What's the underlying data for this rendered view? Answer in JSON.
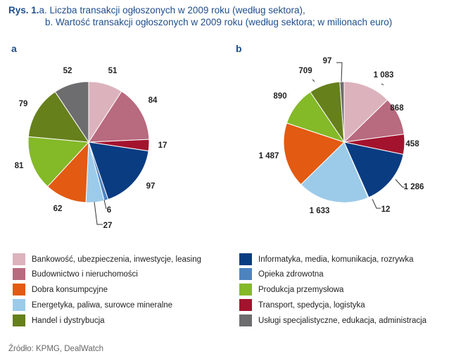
{
  "title": {
    "line1_prefix": "Rys. 1.",
    "line1_text": "a. Liczba transakcji ogłoszonych w 2009 roku (według sektora),",
    "line2_text": "b. Wartość transakcji ogłoszonych w 2009 roku (według sektora; w milionach euro)"
  },
  "panels": {
    "a": "a",
    "b": "b"
  },
  "sectors": [
    {
      "label": "Bankowość, ubezpieczenia, inwestycje, leasing",
      "color": "#dcb3bd"
    },
    {
      "label": "Budownictwo i nieruchomości",
      "color": "#b86a7f"
    },
    {
      "label": "Dobra konsumpcyjne",
      "color": "#e35a12"
    },
    {
      "label": "Energetyka, paliwa, surowce mineralne",
      "color": "#9ccbea"
    },
    {
      "label": "Handel i dystrybucja",
      "color": "#66801c"
    },
    {
      "label": "Informatyka, media, komunikacja, rozrywka",
      "color": "#0a3c82"
    },
    {
      "label": "Opieka zdrowotna",
      "color": "#4d84c0"
    },
    {
      "label": "Produkcja przemysłowa",
      "color": "#84b928"
    },
    {
      "label": "Transport, spedycja, logistyka",
      "color": "#a3132e"
    },
    {
      "label": "Usługi specjalistyczne, edukacja, administracja",
      "color": "#6d6d6f"
    }
  ],
  "chart_data": [
    {
      "type": "pie",
      "title": "a",
      "slices": [
        {
          "sector": "Bankowość, ubezpieczenia, inwestycje, leasing",
          "value": 51,
          "label": "51"
        },
        {
          "sector": "Budownictwo i nieruchomości",
          "value": 84,
          "label": "84"
        },
        {
          "sector": "Transport, spedycja, logistyka",
          "value": 17,
          "label": "17"
        },
        {
          "sector": "Informatyka, media, komunikacja, rozrywka",
          "value": 97,
          "label": "97"
        },
        {
          "sector": "Opieka zdrowotna",
          "value": 6,
          "label": "6"
        },
        {
          "sector": "Energetyka, paliwa, surowce mineralne",
          "value": 27,
          "label": "27"
        },
        {
          "sector": "Dobra konsumpcyjne",
          "value": 62,
          "label": "62"
        },
        {
          "sector": "Produkcja przemysłowa",
          "value": 81,
          "label": "81"
        },
        {
          "sector": "Handel i dystrybucja",
          "value": 79,
          "label": "79"
        },
        {
          "sector": "Usługi specjalistyczne, edukacja, administracja",
          "value": 52,
          "label": "52"
        }
      ]
    },
    {
      "type": "pie",
      "title": "b",
      "slices": [
        {
          "sector": "Bankowość, ubezpieczenia, inwestycje, leasing",
          "value": 1083,
          "label": "1 083"
        },
        {
          "sector": "Budownictwo i nieruchomości",
          "value": 868,
          "label": "868"
        },
        {
          "sector": "Transport, spedycja, logistyka",
          "value": 458,
          "label": "458"
        },
        {
          "sector": "Informatyka, media, komunikacja, rozrywka",
          "value": 1286,
          "label": "1 286"
        },
        {
          "sector": "Opieka zdrowotna",
          "value": 12,
          "label": "12"
        },
        {
          "sector": "Energetyka, paliwa, surowce mineralne",
          "value": 1633,
          "label": "1 633"
        },
        {
          "sector": "Dobra konsumpcyjne",
          "value": 1487,
          "label": "1 487"
        },
        {
          "sector": "Produkcja przemysłowa",
          "value": 890,
          "label": "890"
        },
        {
          "sector": "Handel i dystrybucja",
          "value": 709,
          "label": "709"
        },
        {
          "sector": "Usługi specjalistyczne, edukacja, administracja",
          "value": 97,
          "label": "97"
        }
      ]
    }
  ],
  "source": "Źródło: KPMG, DealWatch"
}
